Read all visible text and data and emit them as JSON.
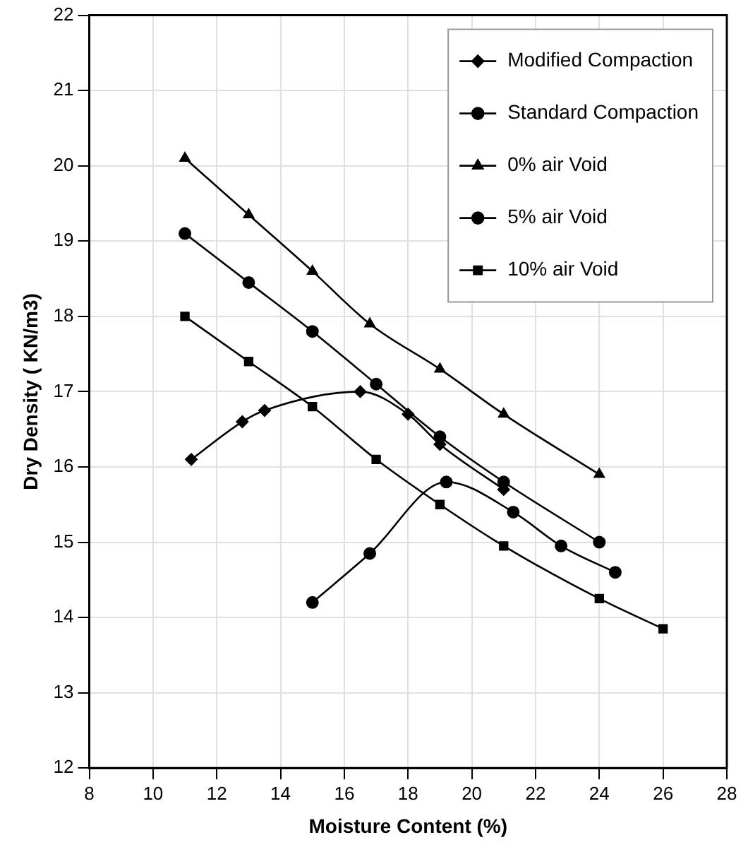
{
  "chart_data": {
    "type": "line",
    "xlabel": "Moisture Content (%)",
    "ylabel": "Dry Density ( KN/m3)",
    "xlim": [
      8,
      28
    ],
    "xticks": [
      8,
      10,
      12,
      14,
      16,
      18,
      20,
      22,
      24,
      26,
      28
    ],
    "ylim": [
      12,
      22
    ],
    "yticks": [
      12,
      13,
      14,
      15,
      16,
      17,
      18,
      19,
      20,
      21,
      22
    ],
    "grid": true,
    "legend": "top right",
    "line_style": "solid",
    "series": [
      {
        "name": "Modified Compaction",
        "color": "#000000",
        "marker": "diamond",
        "x": [
          11.2,
          12.8,
          13.5,
          16.5,
          18,
          19,
          21
        ],
        "values": [
          16.1,
          16.6,
          16.75,
          17.0,
          16.7,
          16.3,
          15.7
        ]
      },
      {
        "name": "Standard Compaction",
        "color": "#000000",
        "marker": "circle",
        "x": [
          15,
          16.8,
          19.2,
          21.3,
          22.8,
          24.5
        ],
        "values": [
          14.2,
          14.85,
          15.8,
          15.4,
          14.95,
          14.6
        ]
      },
      {
        "name": "0% air Void",
        "color": "#000000",
        "marker": "triangle",
        "x": [
          11,
          13,
          15,
          16.8,
          19,
          21,
          24
        ],
        "values": [
          20.1,
          19.35,
          18.6,
          17.9,
          17.3,
          16.7,
          15.9
        ]
      },
      {
        "name": "5% air Void",
        "color": "#000000",
        "marker": "circle",
        "x": [
          11,
          13,
          15,
          17,
          19,
          21,
          24
        ],
        "values": [
          19.1,
          18.45,
          17.8,
          17.1,
          16.4,
          15.8,
          15.0
        ]
      },
      {
        "name": "10% air Void",
        "color": "#000000",
        "marker": "square",
        "x": [
          11,
          13,
          15,
          17,
          19,
          21,
          24,
          26
        ],
        "values": [
          18,
          17.4,
          16.8,
          16.1,
          15.5,
          14.95,
          14.25,
          13.85
        ]
      }
    ]
  }
}
